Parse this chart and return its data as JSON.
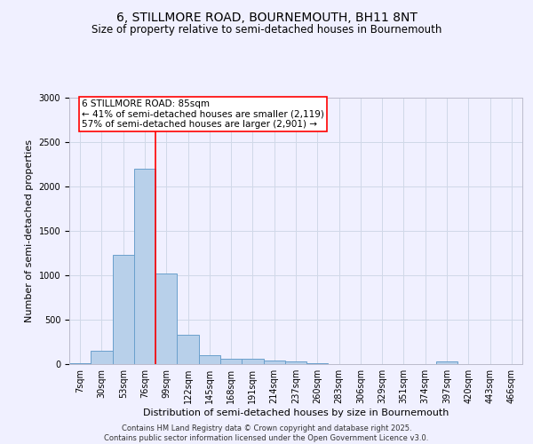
{
  "title_line1": "6, STILLMORE ROAD, BOURNEMOUTH, BH11 8NT",
  "title_line2": "Size of property relative to semi-detached houses in Bournemouth",
  "xlabel": "Distribution of semi-detached houses by size in Bournemouth",
  "ylabel": "Number of semi-detached properties",
  "categories": [
    "7sqm",
    "30sqm",
    "53sqm",
    "76sqm",
    "99sqm",
    "122sqm",
    "145sqm",
    "168sqm",
    "191sqm",
    "214sqm",
    "237sqm",
    "260sqm",
    "283sqm",
    "306sqm",
    "329sqm",
    "351sqm",
    "374sqm",
    "397sqm",
    "420sqm",
    "443sqm",
    "466sqm"
  ],
  "values": [
    10,
    150,
    1230,
    2200,
    1020,
    330,
    105,
    60,
    60,
    40,
    30,
    10,
    0,
    0,
    0,
    0,
    0,
    30,
    0,
    0,
    0
  ],
  "bar_color": "#b8d0ea",
  "bar_edge_color": "#6aa0cc",
  "vline_x": 3.5,
  "vline_color": "red",
  "annotation_box_text": "6 STILLMORE ROAD: 85sqm\n← 41% of semi-detached houses are smaller (2,119)\n57% of semi-detached houses are larger (2,901) →",
  "ylim": [
    0,
    3000
  ],
  "yticks": [
    0,
    500,
    1000,
    1500,
    2000,
    2500,
    3000
  ],
  "grid_color": "#d0d8e8",
  "background_color": "#f0f0ff",
  "footer_text": "Contains HM Land Registry data © Crown copyright and database right 2025.\nContains public sector information licensed under the Open Government Licence v3.0.",
  "title_fontsize": 10,
  "subtitle_fontsize": 8.5,
  "axis_label_fontsize": 8,
  "tick_fontsize": 7,
  "annotation_fontsize": 7.5,
  "footer_fontsize": 6
}
